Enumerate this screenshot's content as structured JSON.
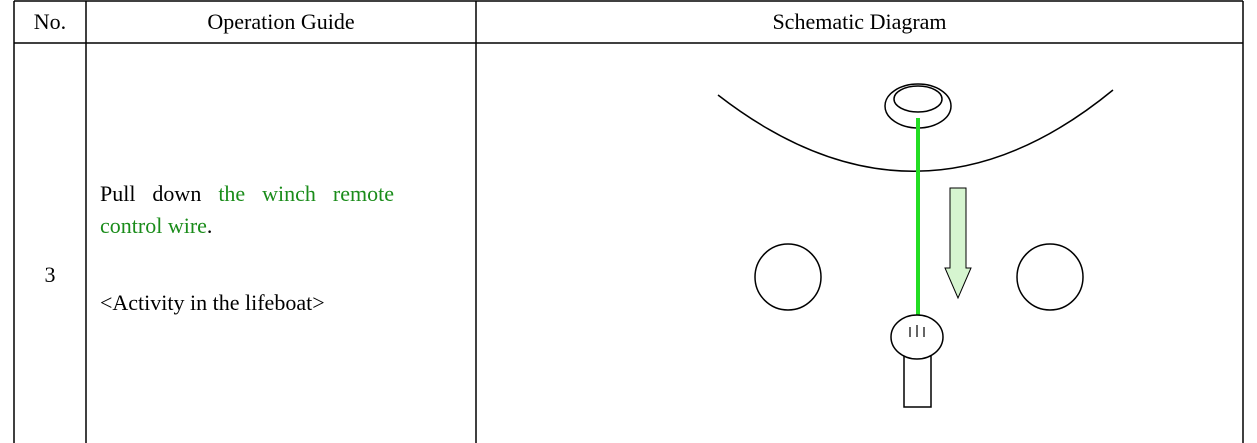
{
  "table": {
    "header": [
      "No.",
      "Operation Guide",
      "Schematic Diagram"
    ],
    "rows": [
      {
        "no": "3",
        "guide": {
          "lead": "Pull down ",
          "highlight": "the winch remote control wire",
          "end": ".",
          "note": "<Activity in the lifeboat>"
        }
      }
    ]
  }
}
